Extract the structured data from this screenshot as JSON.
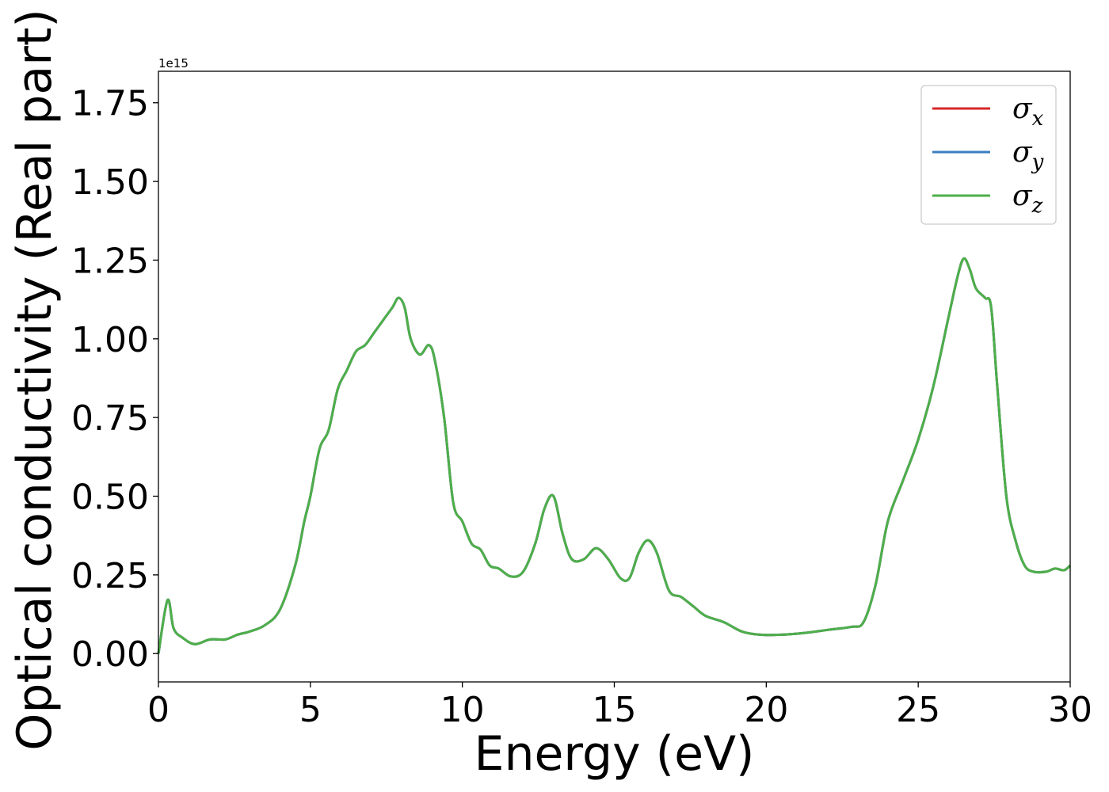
{
  "chart_data": {
    "type": "line",
    "xlabel": "Energy (eV)",
    "ylabel": "Optical conductivity (Real part)",
    "y_offset_label": "1e15",
    "xlim": [
      0,
      30
    ],
    "ylim": [
      -0.09,
      1.85
    ],
    "x_ticks": [
      0,
      5,
      10,
      15,
      20,
      25,
      30
    ],
    "x_tick_labels": [
      "0",
      "5",
      "10",
      "15",
      "20",
      "25",
      "30"
    ],
    "y_ticks": [
      0.0,
      0.25,
      0.5,
      0.75,
      1.0,
      1.25,
      1.5,
      1.75
    ],
    "y_tick_labels": [
      "0.00",
      "0.25",
      "0.50",
      "0.75",
      "1.00",
      "1.25",
      "1.50",
      "1.75"
    ],
    "grid": false,
    "legend_position": "top-right",
    "x": [
      0,
      0.3,
      0.5,
      0.8,
      1.2,
      1.7,
      2.2,
      2.6,
      3.0,
      3.5,
      4.0,
      4.5,
      4.8,
      5.0,
      5.3,
      5.6,
      5.9,
      6.2,
      6.5,
      6.8,
      7.1,
      7.4,
      7.7,
      7.9,
      8.1,
      8.3,
      8.6,
      8.9,
      9.1,
      9.4,
      9.7,
      10.0,
      10.3,
      10.6,
      10.9,
      11.2,
      11.6,
      12.0,
      12.4,
      12.7,
      13.0,
      13.3,
      13.6,
      14.0,
      14.4,
      14.8,
      15.2,
      15.5,
      15.8,
      16.1,
      16.4,
      16.8,
      17.2,
      17.6,
      18.0,
      18.6,
      19.2,
      19.8,
      20.5,
      21.2,
      22.0,
      22.8,
      23.2,
      23.6,
      24.0,
      24.5,
      25.0,
      25.5,
      26.0,
      26.3,
      26.5,
      26.7,
      26.9,
      27.2,
      27.4,
      27.6,
      27.9,
      28.2,
      28.5,
      28.8,
      29.2,
      29.5,
      29.8,
      30.0
    ],
    "series": [
      {
        "name": "σ_x",
        "color": "#d62728",
        "values": [
          0.0,
          0.17,
          0.08,
          0.05,
          0.03,
          0.045,
          0.045,
          0.06,
          0.07,
          0.09,
          0.14,
          0.28,
          0.42,
          0.5,
          0.65,
          0.71,
          0.84,
          0.9,
          0.96,
          0.98,
          1.02,
          1.06,
          1.1,
          1.13,
          1.1,
          1.0,
          0.95,
          0.98,
          0.93,
          0.75,
          0.48,
          0.42,
          0.35,
          0.33,
          0.28,
          0.27,
          0.245,
          0.26,
          0.35,
          0.46,
          0.5,
          0.38,
          0.3,
          0.3,
          0.335,
          0.3,
          0.24,
          0.24,
          0.32,
          0.36,
          0.32,
          0.2,
          0.18,
          0.15,
          0.12,
          0.1,
          0.07,
          0.06,
          0.06,
          0.065,
          0.075,
          0.085,
          0.1,
          0.22,
          0.42,
          0.55,
          0.68,
          0.85,
          1.07,
          1.2,
          1.255,
          1.22,
          1.16,
          1.13,
          1.1,
          0.85,
          0.5,
          0.36,
          0.28,
          0.26,
          0.26,
          0.27,
          0.265,
          0.28
        ]
      },
      {
        "name": "σ_y",
        "color": "#3b7ebf",
        "values": [
          0.0,
          0.17,
          0.08,
          0.05,
          0.03,
          0.045,
          0.045,
          0.06,
          0.07,
          0.09,
          0.14,
          0.28,
          0.42,
          0.5,
          0.65,
          0.71,
          0.84,
          0.9,
          0.96,
          0.98,
          1.02,
          1.06,
          1.1,
          1.13,
          1.1,
          1.0,
          0.95,
          0.98,
          0.93,
          0.75,
          0.48,
          0.42,
          0.35,
          0.33,
          0.28,
          0.27,
          0.245,
          0.26,
          0.35,
          0.46,
          0.5,
          0.38,
          0.3,
          0.3,
          0.335,
          0.3,
          0.24,
          0.24,
          0.32,
          0.36,
          0.32,
          0.2,
          0.18,
          0.15,
          0.12,
          0.1,
          0.07,
          0.06,
          0.06,
          0.065,
          0.075,
          0.085,
          0.1,
          0.22,
          0.42,
          0.55,
          0.68,
          0.85,
          1.07,
          1.2,
          1.255,
          1.22,
          1.16,
          1.13,
          1.1,
          0.85,
          0.5,
          0.36,
          0.28,
          0.26,
          0.26,
          0.27,
          0.265,
          0.28
        ]
      },
      {
        "name": "σ_z",
        "color": "#4daf4a",
        "values": [
          0.0,
          0.17,
          0.08,
          0.05,
          0.03,
          0.045,
          0.045,
          0.06,
          0.07,
          0.09,
          0.14,
          0.28,
          0.42,
          0.5,
          0.65,
          0.71,
          0.84,
          0.9,
          0.96,
          0.98,
          1.02,
          1.06,
          1.1,
          1.13,
          1.1,
          1.0,
          0.95,
          0.98,
          0.93,
          0.75,
          0.48,
          0.42,
          0.35,
          0.33,
          0.28,
          0.27,
          0.245,
          0.26,
          0.35,
          0.46,
          0.5,
          0.38,
          0.3,
          0.3,
          0.335,
          0.3,
          0.24,
          0.24,
          0.32,
          0.36,
          0.32,
          0.2,
          0.18,
          0.15,
          0.12,
          0.1,
          0.07,
          0.06,
          0.06,
          0.065,
          0.075,
          0.085,
          0.1,
          0.22,
          0.42,
          0.55,
          0.68,
          0.85,
          1.07,
          1.2,
          1.255,
          1.22,
          1.16,
          1.13,
          1.1,
          0.85,
          0.5,
          0.36,
          0.28,
          0.26,
          0.26,
          0.27,
          0.265,
          0.28
        ]
      }
    ],
    "legend": [
      {
        "base": "σ",
        "sub": "x",
        "color": "#d62728"
      },
      {
        "base": "σ",
        "sub": "y",
        "color": "#3b7ebf"
      },
      {
        "base": "σ",
        "sub": "z",
        "color": "#4daf4a"
      }
    ]
  }
}
